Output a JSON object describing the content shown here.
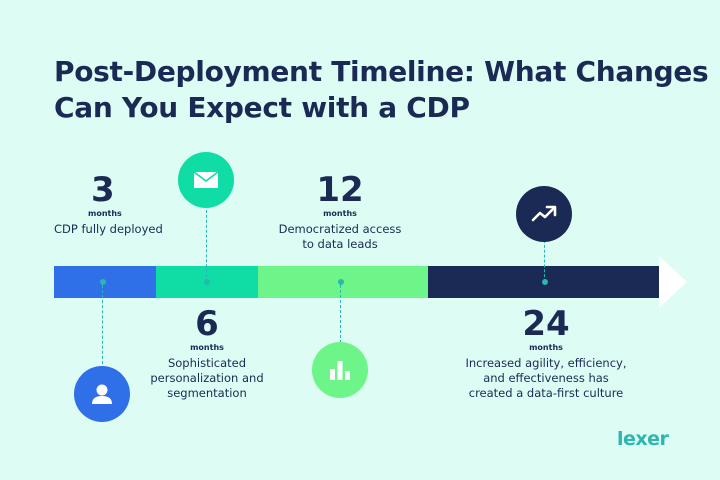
{
  "title": {
    "line1": "Post-Deployment Timeline: What Changes",
    "line2": "Can You Expect with a CDP"
  },
  "colors": {
    "background": "#ddfcf3",
    "navy": "#1b2a55",
    "blue": "#2f6fe8",
    "teal": "#10dca5",
    "green": "#6df58a",
    "accent": "#2bb6b0"
  },
  "milestones": [
    {
      "number": "3",
      "unit": "months",
      "description": [
        "CDP fully deployed"
      ],
      "icon": "user-icon"
    },
    {
      "number": "6",
      "unit": "months",
      "description": [
        "Sophisticated",
        "personalization and",
        "segmentation"
      ],
      "icon": "envelope-icon"
    },
    {
      "number": "12",
      "unit": "months",
      "description": [
        "Democratized access",
        "to data leads"
      ],
      "icon": "bar-chart-icon"
    },
    {
      "number": "24",
      "unit": "months",
      "description": [
        "Increased agility, efficiency,",
        "and effectiveness has",
        "created a data-first culture"
      ],
      "icon": "trending-up-icon"
    }
  ],
  "logo": "lexer"
}
